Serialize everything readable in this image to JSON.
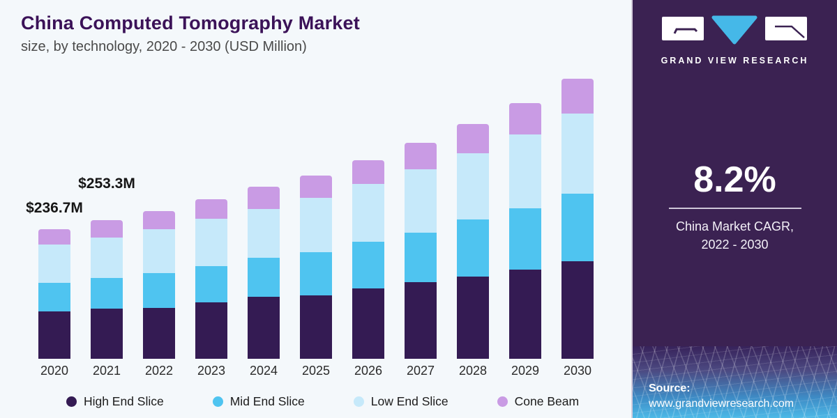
{
  "header": {
    "title": "China Computed Tomography Market",
    "subtitle": "size, by technology, 2020 - 2030 (USD Million)"
  },
  "chart_data": {
    "type": "bar",
    "stacked": true,
    "unit": "USD Million",
    "title": "China Computed Tomography Market size, by technology, 2020 - 2030 (USD Million)",
    "categories": [
      "2020",
      "2021",
      "2022",
      "2023",
      "2024",
      "2025",
      "2026",
      "2027",
      "2028",
      "2029",
      "2030"
    ],
    "series": [
      {
        "name": "High End Slice",
        "color": "#341b53",
        "values": [
          86.0,
          91.6,
          92.8,
          102.1,
          112.7,
          115.2,
          127.4,
          139.7,
          149.4,
          162.1,
          176.9
        ]
      },
      {
        "name": "Mid End Slice",
        "color": "#4fc4f0",
        "values": [
          52.5,
          56.2,
          63.3,
          65.5,
          70.9,
          78.9,
          84.5,
          89.9,
          103.5,
          111.8,
          122.3
        ]
      },
      {
        "name": "Low End Slice",
        "color": "#c6e9fa",
        "values": [
          70.0,
          73.8,
          79.4,
          86.5,
          88.7,
          99.2,
          105.5,
          115.3,
          120.3,
          134.2,
          145.6
        ]
      },
      {
        "name": "Cone Beam",
        "color": "#c99be4",
        "values": [
          28.2,
          31.7,
          33.3,
          35.1,
          40.0,
          40.1,
          43.6,
          48.6,
          53.6,
          56.6,
          63.3
        ]
      }
    ],
    "bar_labels": [
      {
        "category": "2020",
        "text": "$236.7M"
      },
      {
        "category": "2021",
        "text": "$253.3M"
      }
    ],
    "legend_position": "bottom",
    "axes": "none",
    "background": "#f4f8fb"
  },
  "sidebar": {
    "brand_name": "GRAND VIEW RESEARCH",
    "cagr_value": "8.2%",
    "cagr_caption_line1": "China Market CAGR,",
    "cagr_caption_line2": "2022 - 2030",
    "source_label": "Source:",
    "source_url": "www.grandviewresearch.com",
    "background_color": "#3b2252",
    "accent_blue": "#45b8e8"
  }
}
